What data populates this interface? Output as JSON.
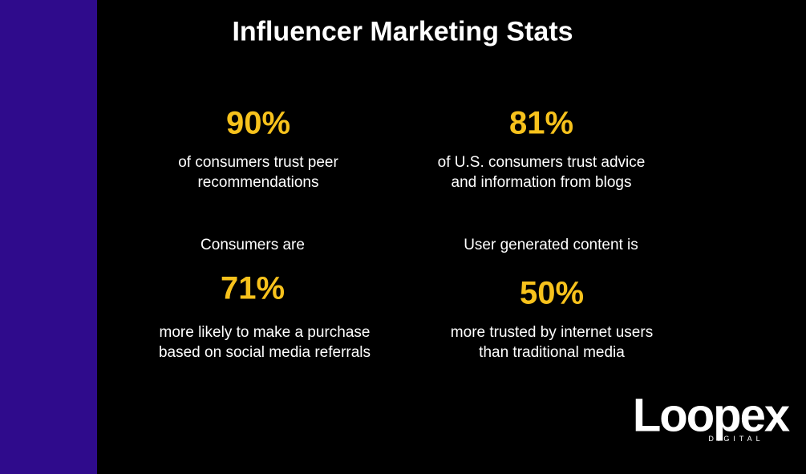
{
  "header": {
    "title": "Influencer Marketing Stats"
  },
  "stats": [
    {
      "value": "90%",
      "description": [
        "of consumers trust peer",
        "recommendations"
      ]
    },
    {
      "value": "81%",
      "description": [
        "of U.S. consumers trust advice",
        "and information from blogs"
      ]
    },
    {
      "prefix": "Consumers are",
      "value": "71%",
      "description": [
        "more likely to make a purchase",
        "based on social media referrals"
      ]
    },
    {
      "prefix": "User generated content is",
      "value": "50%",
      "description": [
        "more trusted by internet users",
        "than traditional media"
      ]
    }
  ],
  "logo": {
    "name": "Loopex",
    "tagline": "DIGITAL"
  }
}
